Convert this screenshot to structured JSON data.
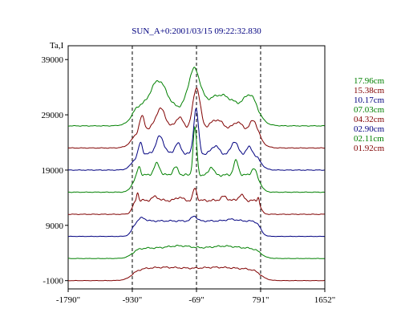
{
  "chart_data": {
    "type": "line",
    "title": "SUN_A+0:2001/03/15 09:22:32.830",
    "ylabel": "Ta,I",
    "xlabel": "",
    "x_tick_labels": [
      "-1790\"",
      "-930\"",
      "-69\"",
      "791\"",
      "1652\""
    ],
    "x_tick_values": [
      -1790,
      -930,
      -69,
      791,
      1652
    ],
    "y_tick_labels": [
      "39000",
      "29000",
      "19000",
      "9000",
      "-1000"
    ],
    "y_tick_values": [
      39000,
      29000,
      19000,
      9000,
      -1000
    ],
    "xlim": [
      -1790,
      1652
    ],
    "ylim": [
      -2500,
      41500
    ],
    "vlines": [
      -930,
      -69,
      791
    ],
    "legend_position": "right",
    "series": [
      {
        "name": "17.96cm",
        "color": "#008000",
        "base": 27000,
        "profile": "s1796"
      },
      {
        "name": "15.38cm",
        "color": "#800000",
        "base": 23000,
        "profile": "s1538"
      },
      {
        "name": "10.17cm",
        "color": "#000080",
        "base": 19000,
        "profile": "s1017"
      },
      {
        "name": "07.03cm",
        "color": "#008000",
        "base": 15000,
        "profile": "s0703"
      },
      {
        "name": "04.32cm",
        "color": "#800000",
        "base": 11000,
        "profile": "s0432"
      },
      {
        "name": "02.90cm",
        "color": "#000080",
        "base": 7000,
        "profile": "s0290"
      },
      {
        "name": "02.11cm",
        "color": "#008000",
        "base": 3000,
        "profile": "s0211"
      },
      {
        "name": "01.92cm",
        "color": "#800000",
        "base": -1000,
        "profile": "s0192"
      }
    ]
  }
}
